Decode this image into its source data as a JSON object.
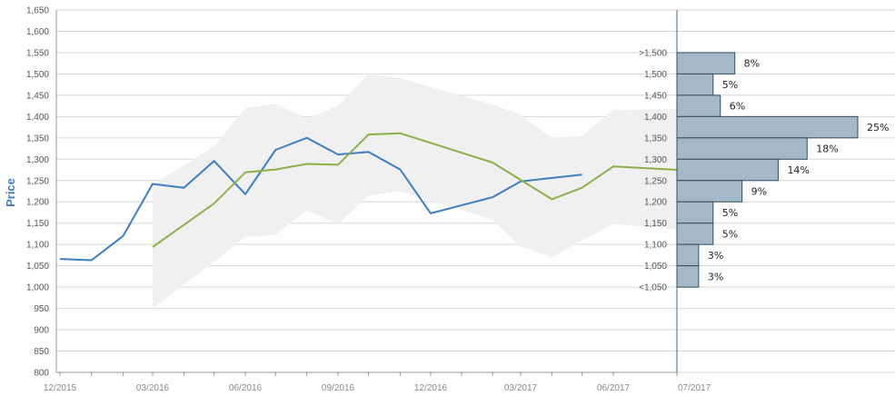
{
  "chart_data": {
    "type": "line",
    "ylabel": "Price",
    "ylim": [
      800,
      1650
    ],
    "y_ticks": [
      "800",
      "850",
      "900",
      "950",
      "1,000",
      "1,050",
      "1,100",
      "1,150",
      "1,200",
      "1,250",
      "1,300",
      "1,350",
      "1,400",
      "1,450",
      "1,500",
      "1,550",
      "1,600",
      "1,650"
    ],
    "x_ticks": [
      "12/2015",
      "03/2016",
      "06/2016",
      "09/2016",
      "12/2016",
      "03/2017",
      "06/2017",
      "07/2017"
    ],
    "grid": true,
    "colors": {
      "actual": "#3a7fc4",
      "forecast": "#8cb04a",
      "range": "#f0f0f0",
      "bars": "#a3b9c8",
      "bar_border": "#2f4f5f"
    },
    "series": [
      {
        "values": [
          {
            "x": "2015-12-01",
            "y": 1066
          },
          {
            "x": "2016-01-01",
            "y": 1063
          },
          {
            "x": "2016-02-01",
            "y": 1120
          },
          {
            "x": "2016-03-01",
            "y": 1242
          },
          {
            "x": "2016-04-01",
            "y": 1233
          },
          {
            "x": "2016-05-01",
            "y": 1296
          },
          {
            "x": "2016-06-01",
            "y": 1218
          },
          {
            "x": "2016-07-01",
            "y": 1322
          },
          {
            "x": "2016-08-01",
            "y": 1350
          },
          {
            "x": "2016-09-01",
            "y": 1311
          },
          {
            "x": "2016-10-01",
            "y": 1317
          },
          {
            "x": "2016-11-01",
            "y": 1276
          },
          {
            "x": "2016-12-01",
            "y": 1173
          },
          {
            "x": "2017-02-01",
            "y": 1211
          },
          {
            "x": "2017-03-01",
            "y": 1248
          },
          {
            "x": "2017-05-01",
            "y": 1264
          }
        ]
      },
      {
        "values": [
          {
            "x": "2016-03-01",
            "y": 1094
          },
          {
            "x": "2016-05-01",
            "y": 1196
          },
          {
            "x": "2016-06-01",
            "y": 1269
          },
          {
            "x": "2016-07-01",
            "y": 1276
          },
          {
            "x": "2016-08-01",
            "y": 1289
          },
          {
            "x": "2016-09-01",
            "y": 1287
          },
          {
            "x": "2016-10-01",
            "y": 1358
          },
          {
            "x": "2016-11-01",
            "y": 1361
          },
          {
            "x": "2017-02-01",
            "y": 1292
          },
          {
            "x": "2017-04-01",
            "y": 1206
          },
          {
            "x": "2017-05-01",
            "y": 1233
          },
          {
            "x": "2017-06-01",
            "y": 1283
          },
          {
            "x": "2017-07-01",
            "y": 1275
          },
          {
            "x": "2017-07-15",
            "y": 1317
          }
        ]
      }
    ],
    "range_band": [
      {
        "x": "2016-03-01",
        "high": 1240,
        "low": 950
      },
      {
        "x": "2016-05-01",
        "high": 1330,
        "low": 1060
      },
      {
        "x": "2016-06-01",
        "high": 1420,
        "low": 1118
      },
      {
        "x": "2016-07-01",
        "high": 1430,
        "low": 1122
      },
      {
        "x": "2016-08-01",
        "high": 1395,
        "low": 1180
      },
      {
        "x": "2016-09-01",
        "high": 1425,
        "low": 1148
      },
      {
        "x": "2016-10-01",
        "high": 1500,
        "low": 1215
      },
      {
        "x": "2016-11-01",
        "high": 1490,
        "low": 1225
      },
      {
        "x": "2017-02-01",
        "high": 1428,
        "low": 1158
      },
      {
        "x": "2017-03-01",
        "high": 1405,
        "low": 1095
      },
      {
        "x": "2017-04-01",
        "high": 1350,
        "low": 1070
      },
      {
        "x": "2017-05-01",
        "high": 1355,
        "low": 1110
      },
      {
        "x": "2017-06-01",
        "high": 1415,
        "low": 1148
      },
      {
        "x": "2017-07-15",
        "high": 1420,
        "low": 1130
      }
    ],
    "distribution": [
      {
        "label": ">1,500",
        "value": 8,
        "text": "8%",
        "center": 1525
      },
      {
        "label": "1,500",
        "value": 5,
        "text": "5%",
        "center": 1475
      },
      {
        "label": "1,450",
        "value": 6,
        "text": "6%",
        "center": 1425
      },
      {
        "label": "1,400",
        "value": 25,
        "text": "25%",
        "center": 1375
      },
      {
        "label": "1,350",
        "value": 18,
        "text": "18%",
        "center": 1325
      },
      {
        "label": "1,300",
        "value": 14,
        "text": "14%",
        "center": 1275
      },
      {
        "label": "1,250",
        "value": 9,
        "text": "9%",
        "center": 1225
      },
      {
        "label": "1,200",
        "value": 5,
        "text": "5%",
        "center": 1175
      },
      {
        "label": "1,150",
        "value": 5,
        "text": "5%",
        "center": 1125
      },
      {
        "label": "1,100",
        "value": 3,
        "text": "3%",
        "center": 1075
      },
      {
        "label": "1,050",
        "value": 3,
        "text": "3%",
        "center": 1025
      },
      {
        "label": "<1,050",
        "value": 0,
        "text": "",
        "center": 1000
      }
    ]
  }
}
